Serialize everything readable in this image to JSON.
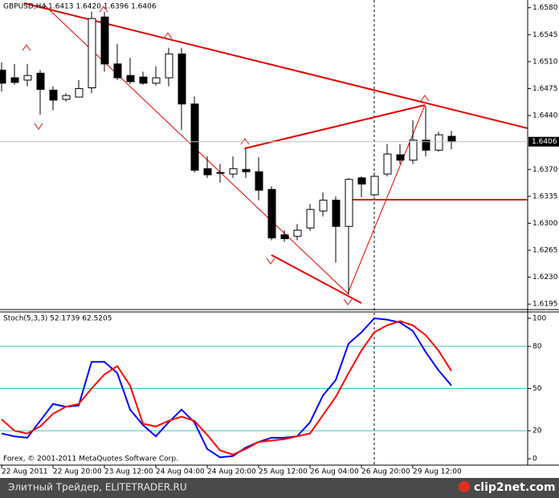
{
  "chart_data": [
    {
      "type": "candlestick",
      "title": "GBPUSD,H4  1.6413 1.6420 1.6396 1.6406",
      "categories": [
        "22 Aug 2011",
        null,
        null,
        null,
        "22 Aug 20:00",
        null,
        null,
        null,
        "23 Aug 12:00",
        null,
        null,
        null,
        "24 Aug 04:00",
        null,
        null,
        null,
        "24 Aug 20:00",
        null,
        null,
        null,
        "25 Aug 12:00",
        null,
        null,
        null,
        "26 Aug 04:00",
        null,
        null,
        null,
        "26 Aug 20:00",
        null,
        null,
        null,
        "29 Aug 12:00",
        null,
        null,
        null
      ],
      "open": [
        1.6499,
        1.6489,
        1.6486,
        1.6495,
        1.6473,
        1.6461,
        1.6464,
        1.6476,
        1.6568,
        1.6507,
        1.6492,
        1.649,
        1.6482,
        1.6489,
        1.652,
        1.6455,
        1.6371,
        1.6365,
        1.6364,
        1.637,
        1.6367,
        1.6344,
        1.6285,
        1.6283,
        1.6294,
        1.6316,
        1.633,
        1.6296,
        1.6359,
        1.6337,
        1.6364,
        1.6389,
        1.6382,
        1.6408,
        1.6395,
        1.6413
      ],
      "high": [
        1.6509,
        1.6507,
        1.6507,
        1.6499,
        1.6478,
        1.6469,
        1.6486,
        1.6575,
        1.6575,
        1.6533,
        1.6515,
        1.6497,
        1.6504,
        1.6528,
        1.6528,
        1.6465,
        1.6387,
        1.6377,
        1.6387,
        1.6397,
        1.6386,
        1.6348,
        1.6291,
        1.6299,
        1.6325,
        1.634,
        1.6335,
        1.6359,
        1.6361,
        1.6366,
        1.6403,
        1.6403,
        1.6434,
        1.6452,
        1.6419,
        1.642
      ],
      "low": [
        1.6471,
        1.648,
        1.6478,
        1.6441,
        1.6447,
        1.6458,
        1.6464,
        1.6469,
        1.6497,
        1.6486,
        1.6481,
        1.648,
        1.6479,
        1.6478,
        1.6421,
        1.6366,
        1.6359,
        1.6353,
        1.6359,
        1.6359,
        1.633,
        1.6278,
        1.6276,
        1.6278,
        1.629,
        1.6309,
        1.6249,
        1.6207,
        1.6334,
        1.6335,
        1.6361,
        1.6377,
        1.6377,
        1.6387,
        1.6393,
        1.6396
      ],
      "close": [
        1.6482,
        1.6483,
        1.6492,
        1.6474,
        1.646,
        1.6466,
        1.6475,
        1.6566,
        1.6507,
        1.6489,
        1.6484,
        1.6482,
        1.6489,
        1.652,
        1.6455,
        1.6369,
        1.6363,
        1.6366,
        1.6371,
        1.6367,
        1.6343,
        1.6281,
        1.628,
        1.6291,
        1.6318,
        1.633,
        1.6296,
        1.6357,
        1.6351,
        1.6361,
        1.639,
        1.6382,
        1.6408,
        1.6395,
        1.6415,
        1.6406
      ],
      "up_color": "#ffffff",
      "down_color": "#000000",
      "last_price": 1.6406,
      "ylim": [
        1.6189,
        1.6588
      ],
      "yticks": [
        {
          "value": 1.658,
          "label": "1.6580"
        },
        1.6545,
        {
          "value": 1.651,
          "label": "1.6510"
        },
        1.6475,
        {
          "value": 1.644,
          "label": "1.6440"
        },
        {
          "value": 1.637,
          "label": "1.6370"
        },
        1.6335,
        {
          "value": 1.63,
          "label": "1.6300"
        },
        1.6265,
        {
          "value": 1.623,
          "label": "1.6230"
        },
        1.6195
      ]
    },
    {
      "type": "line",
      "title": "Stoch(5,3,3) 52.1739 62.5205",
      "annotation": "Forex, © 2001-2011 MetaQuotes Software Corp.",
      "series": [
        {
          "color": "#0000ff",
          "values": [
            18,
            16,
            15,
            27,
            39,
            37,
            38,
            69,
            69,
            61,
            35,
            24,
            16,
            26,
            35,
            26,
            7,
            1,
            2,
            8,
            12,
            15,
            15,
            16,
            26,
            45,
            56,
            82,
            90,
            100,
            99,
            97,
            91,
            76,
            63,
            52.1739
          ]
        },
        {
          "color": "#ff0000",
          "values": [
            28,
            20,
            18,
            23,
            32,
            37,
            39,
            50,
            60,
            66,
            52,
            25,
            23,
            27,
            30,
            27,
            17,
            6,
            3,
            7,
            12,
            13,
            14,
            16,
            18,
            31,
            44,
            61,
            77,
            90,
            95,
            98,
            95,
            88,
            77,
            62.5205
          ]
        }
      ],
      "levels": [
        80,
        50,
        20
      ],
      "level_color": "#40c0c0",
      "ylim": [
        -4.5,
        104.5
      ],
      "yticks": [
        100,
        80,
        50,
        20,
        0
      ]
    }
  ],
  "footer": {
    "left": "Элитный Трейдер, ELITETRADER.RU",
    "logo": "clip2net.com"
  }
}
